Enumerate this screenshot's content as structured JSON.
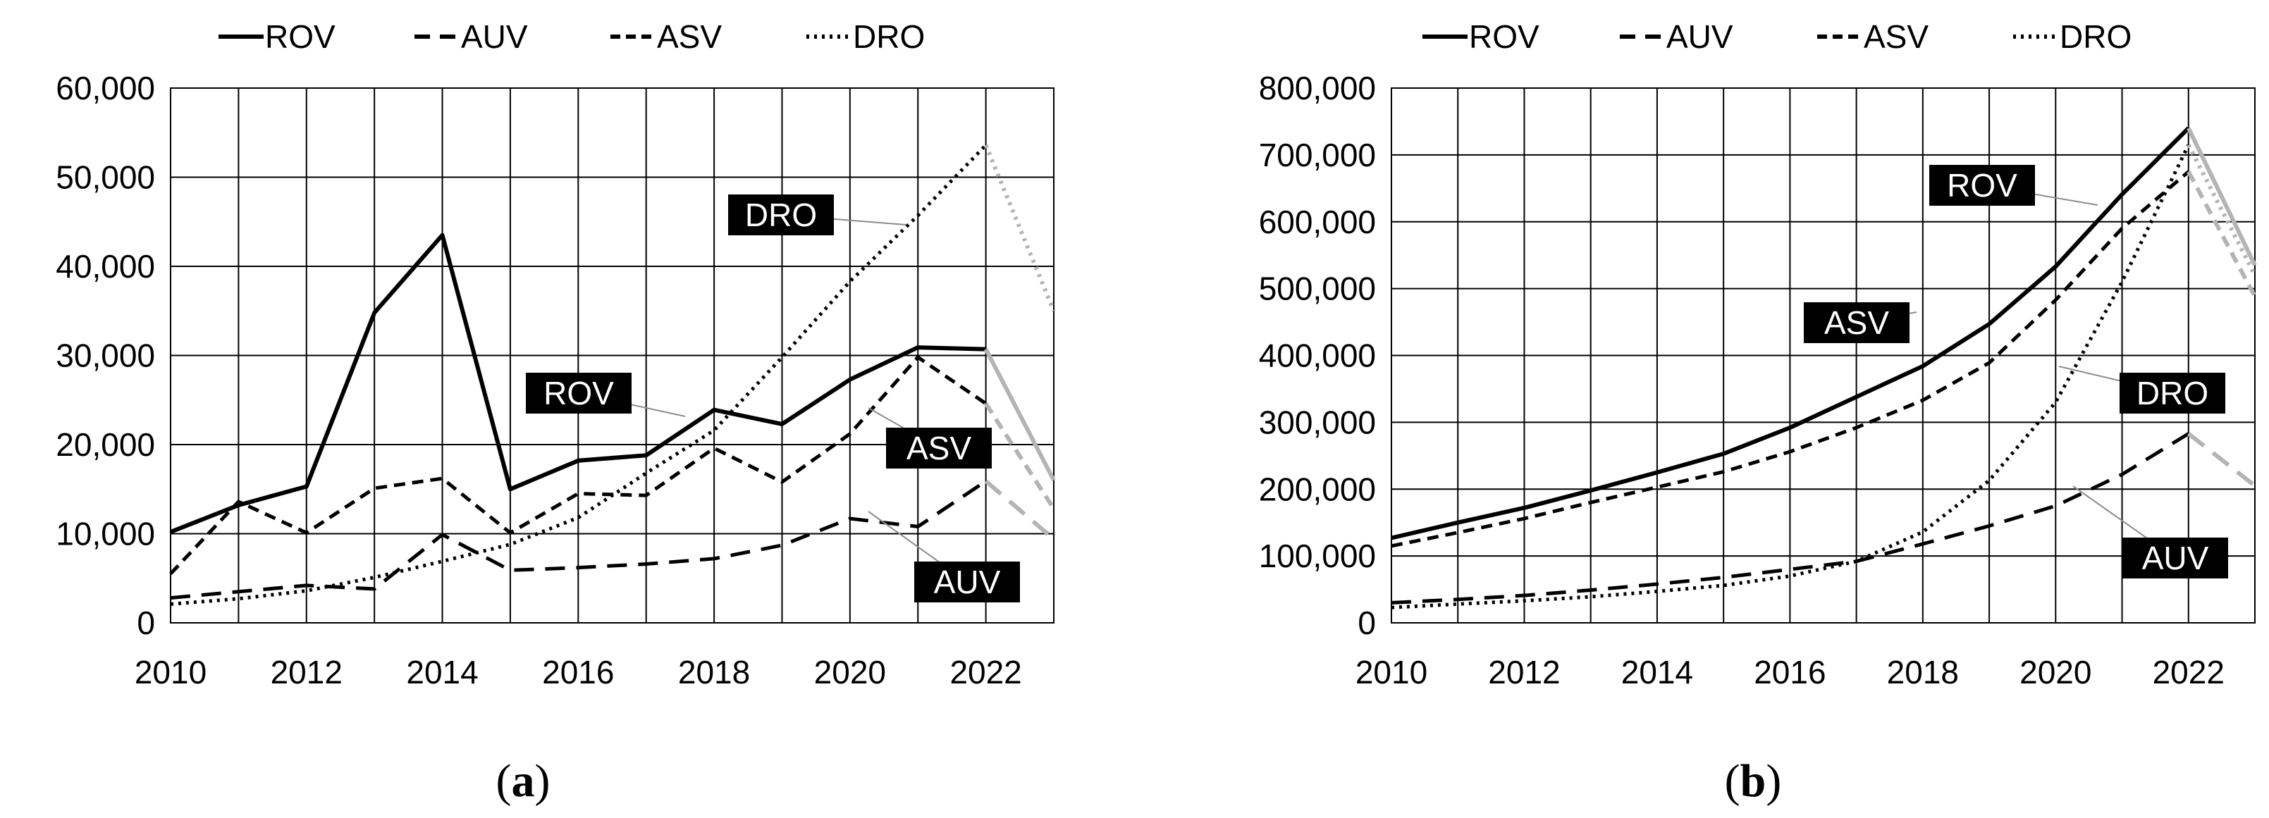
{
  "chart_data": [
    {
      "type": "line",
      "panel_label": "a",
      "x": [
        2010,
        2011,
        2012,
        2013,
        2014,
        2015,
        2016,
        2017,
        2018,
        2019,
        2020,
        2021,
        2022,
        2023
      ],
      "xlim": [
        2010,
        2023
      ],
      "ylim": [
        0,
        60000
      ],
      "x_ticks": [
        "2010",
        "2012",
        "2014",
        "2016",
        "2018",
        "2020",
        "2022"
      ],
      "y_ticks": [
        "0",
        "10,000",
        "20,000",
        "30,000",
        "40,000",
        "50,000",
        "60,000"
      ],
      "forecast_from": 2022,
      "legend": [
        "ROV",
        "AUV",
        "ASV",
        "DRO"
      ],
      "series": [
        {
          "name": "ROV",
          "style": "solid",
          "values": [
            10200,
            13200,
            15300,
            34800,
            43500,
            15000,
            18200,
            18800,
            23900,
            22300,
            27300,
            30900,
            30700,
            16000
          ]
        },
        {
          "name": "AUV",
          "style": "longdash",
          "values": [
            2800,
            3500,
            4200,
            3800,
            9900,
            5900,
            6200,
            6600,
            7200,
            8700,
            11700,
            10800,
            15900,
            9400
          ]
        },
        {
          "name": "ASV",
          "style": "dash",
          "values": [
            5500,
            13600,
            10100,
            15100,
            16200,
            10100,
            14500,
            14300,
            19600,
            15800,
            21200,
            29800,
            24600,
            12800
          ]
        },
        {
          "name": "DRO",
          "style": "dot",
          "values": [
            2100,
            2700,
            3600,
            5100,
            6900,
            8800,
            11800,
            16800,
            21600,
            29800,
            38300,
            45700,
            53600,
            35000
          ]
        }
      ],
      "callouts": [
        "DRO",
        "ROV",
        "ASV",
        "AUV"
      ]
    },
    {
      "type": "line",
      "panel_label": "b",
      "x": [
        2010,
        2011,
        2012,
        2013,
        2014,
        2015,
        2016,
        2017,
        2018,
        2019,
        2020,
        2021,
        2022,
        2023
      ],
      "xlim": [
        2010,
        2023
      ],
      "ylim": [
        0,
        800000
      ],
      "x_ticks": [
        "2010",
        "2012",
        "2014",
        "2016",
        "2018",
        "2020",
        "2022"
      ],
      "y_ticks": [
        "0",
        "100,000",
        "200,000",
        "300,000",
        "400,000",
        "500,000",
        "600,000",
        "700,000",
        "800,000"
      ],
      "forecast_from": 2022,
      "legend": [
        "ROV",
        "AUV",
        "ASV",
        "DRO"
      ],
      "series": [
        {
          "name": "ROV",
          "style": "solid",
          "values": [
            127000,
            150000,
            172000,
            198000,
            225000,
            253000,
            292000,
            338000,
            384000,
            447000,
            533000,
            641000,
            740000,
            535000
          ]
        },
        {
          "name": "AUV",
          "style": "longdash",
          "values": [
            30000,
            35000,
            41000,
            49000,
            58000,
            68000,
            80000,
            92000,
            118000,
            145000,
            175000,
            222000,
            283000,
            205000
          ]
        },
        {
          "name": "ASV",
          "style": "dash",
          "values": [
            115000,
            135000,
            156000,
            180000,
            203000,
            226000,
            256000,
            292000,
            333000,
            389000,
            483000,
            590000,
            675000,
            488000
          ]
        },
        {
          "name": "DRO",
          "style": "dot",
          "values": [
            23000,
            28000,
            33000,
            39000,
            47000,
            56000,
            70000,
            92000,
            136000,
            213000,
            330000,
            510000,
            715000,
            520000
          ]
        }
      ],
      "callouts": [
        "ROV",
        "ASV",
        "DRO",
        "AUV"
      ]
    }
  ],
  "colors": {
    "line": "#000000",
    "forecast": "#b4b4b4",
    "callout_bg": "#000000",
    "callout_text": "#ffffff"
  },
  "captions": {
    "a": {
      "open": "(",
      "label": "a",
      "close": ")"
    },
    "b": {
      "open": "(",
      "label": "b",
      "close": ")"
    }
  }
}
